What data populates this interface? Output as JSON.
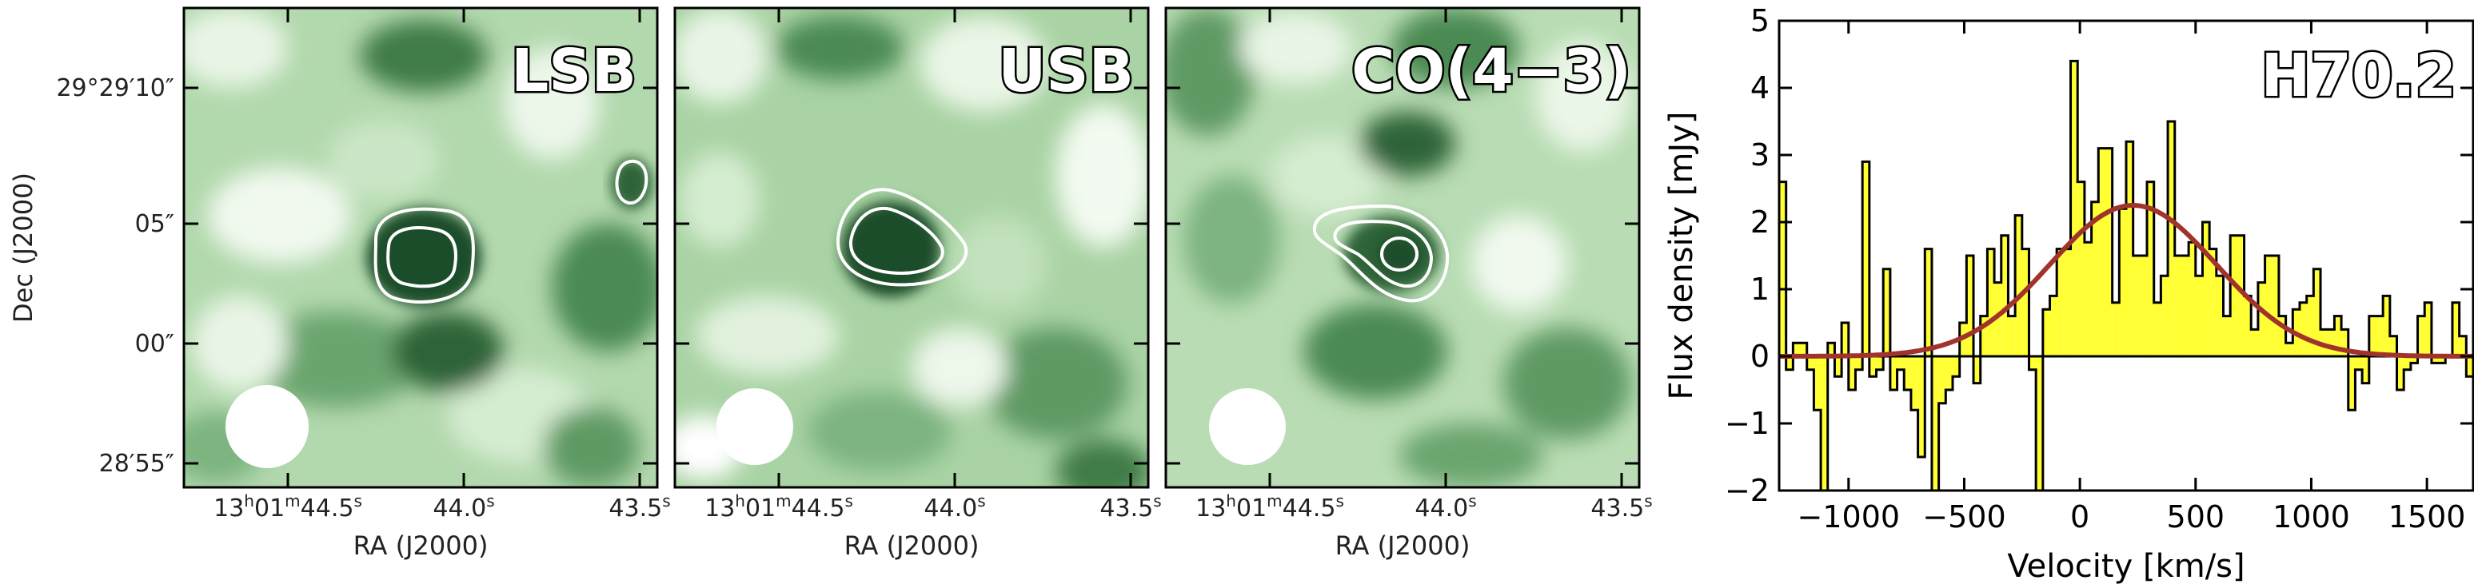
{
  "colors": {
    "map_dark": "#1f4d2a",
    "map_mid": "#5e9a63",
    "map_light": "#e9f5e6",
    "contour": "#ffffff",
    "hist_fill": "#ffff33",
    "hist_edge": "#000000",
    "fit_line": "#a0332b"
  },
  "maps": [
    {
      "label": "LSB",
      "contours": 2,
      "extra_blob": true
    },
    {
      "label": "USB",
      "contours": 2,
      "extra_blob": false
    },
    {
      "label": "CO(4−3)",
      "contours": 3,
      "extra_blob": false
    }
  ],
  "map_axes": {
    "xlabel": "RA (J2000)",
    "ylabel": "Dec (J2000)",
    "xticks": [
      {
        "h": "13",
        "m": "01",
        "s": "44.5"
      },
      {
        "s": "44.0"
      },
      {
        "s": "43.5"
      }
    ],
    "yticks": [
      "29°29′10″",
      "05″",
      "00″",
      "28′55″"
    ]
  },
  "chart_data": {
    "type": "bar",
    "title": "H70.2",
    "xlabel": "Velocity [km/s]",
    "ylabel": "Flux density [mJy]",
    "xlim": [
      -1300,
      1700
    ],
    "ylim": [
      -2,
      5
    ],
    "xticks": [
      -1000,
      -500,
      0,
      500,
      1000,
      1500
    ],
    "yticks": [
      -2,
      -1,
      0,
      1,
      2,
      3,
      4,
      5
    ],
    "bin_width": 30,
    "x": [
      -1300,
      -1270,
      -1240,
      -1210,
      -1180,
      -1150,
      -1120,
      -1090,
      -1060,
      -1030,
      -1000,
      -970,
      -940,
      -910,
      -880,
      -850,
      -820,
      -790,
      -760,
      -730,
      -700,
      -670,
      -640,
      -610,
      -580,
      -550,
      -520,
      -490,
      -460,
      -430,
      -400,
      -370,
      -340,
      -310,
      -280,
      -250,
      -220,
      -190,
      -160,
      -130,
      -100,
      -70,
      -40,
      -10,
      20,
      50,
      80,
      110,
      140,
      170,
      200,
      230,
      260,
      290,
      320,
      350,
      380,
      410,
      440,
      470,
      500,
      530,
      560,
      590,
      620,
      650,
      680,
      710,
      740,
      770,
      800,
      830,
      860,
      890,
      920,
      950,
      980,
      1010,
      1040,
      1070,
      1100,
      1130,
      1160,
      1190,
      1220,
      1250,
      1280,
      1310,
      1340,
      1370,
      1400,
      1430,
      1460,
      1490,
      1520,
      1550,
      1580,
      1610,
      1640,
      1670
    ],
    "values": [
      2.6,
      -0.2,
      0.2,
      0.2,
      -0.2,
      -0.8,
      -2.0,
      0.2,
      -0.3,
      0.5,
      -0.5,
      -0.2,
      2.9,
      -0.3,
      -0.2,
      1.3,
      -0.5,
      -0.2,
      -0.5,
      -0.8,
      -1.5,
      1.6,
      -2.0,
      -0.7,
      -0.5,
      -0.3,
      0.5,
      1.5,
      -0.4,
      0.6,
      1.6,
      1.1,
      1.8,
      0.6,
      2.1,
      1.6,
      -0.2,
      -2.5,
      0.7,
      0.9,
      1.6,
      1.6,
      4.4,
      2.6,
      1.7,
      2.3,
      3.1,
      3.1,
      0.8,
      2.2,
      3.2,
      1.5,
      1.5,
      2.6,
      0.8,
      1.2,
      3.5,
      1.5,
      1.5,
      1.7,
      1.2,
      2.0,
      1.6,
      1.2,
      0.6,
      1.8,
      1.8,
      0.9,
      0.4,
      1.1,
      1.5,
      1.5,
      0.6,
      0.2,
      0.7,
      0.8,
      0.9,
      1.3,
      0.4,
      0.4,
      0.6,
      0.4,
      -0.8,
      -0.2,
      -0.4,
      0.6,
      0.6,
      0.9,
      0.3,
      -0.5,
      -0.2,
      -0.1,
      0.6,
      0.8,
      -0.1,
      -0.1,
      0.0,
      0.8,
      0.3,
      -0.3
    ],
    "fit": {
      "type": "gaussian",
      "amplitude": 2.25,
      "center": 230,
      "fwhm": 850
    }
  }
}
